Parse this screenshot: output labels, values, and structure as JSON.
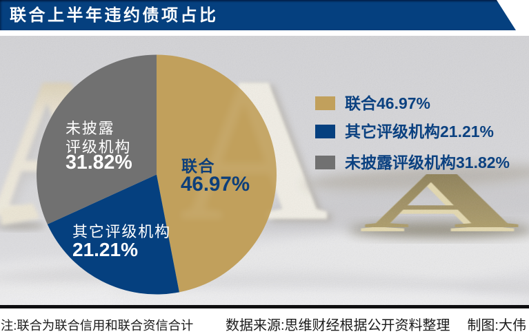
{
  "title": "联合上半年违约债项占比",
  "chart_data": {
    "type": "pie",
    "title": "联合上半年违约债项占比",
    "start_angle_deg": 0,
    "direction": "clockwise",
    "legend_position": "right",
    "slices": [
      {
        "label": "联合",
        "value": 46.97,
        "display": "46.97%",
        "color": "#c1a05c",
        "label_color": "#0d3f7a",
        "label_lines": [
          "联合"
        ]
      },
      {
        "label": "其它评级机构",
        "value": 21.21,
        "display": "21.21%",
        "color": "#05407f",
        "label_color": "#ffffff",
        "label_lines": [
          "其它评级机构"
        ]
      },
      {
        "label": "未披露评级机构",
        "value": 31.82,
        "display": "31.82%",
        "color": "#717171",
        "label_color": "#ffffff",
        "label_lines": [
          "未披露",
          "评级机构"
        ]
      }
    ]
  },
  "footer": {
    "note": "注:联合为联合信用和联合资信合计",
    "source": "数据来源:思维财经根据公开资料整理",
    "credit": "制图:大伟"
  },
  "colors": {
    "banner": "#05407f",
    "brand_blue": "#05407f",
    "legend_text": "#0b4180",
    "gold": "#c1a05c",
    "gray": "#717171",
    "photo_background": "#d3d3d5",
    "separator": "#0e0e10"
  }
}
